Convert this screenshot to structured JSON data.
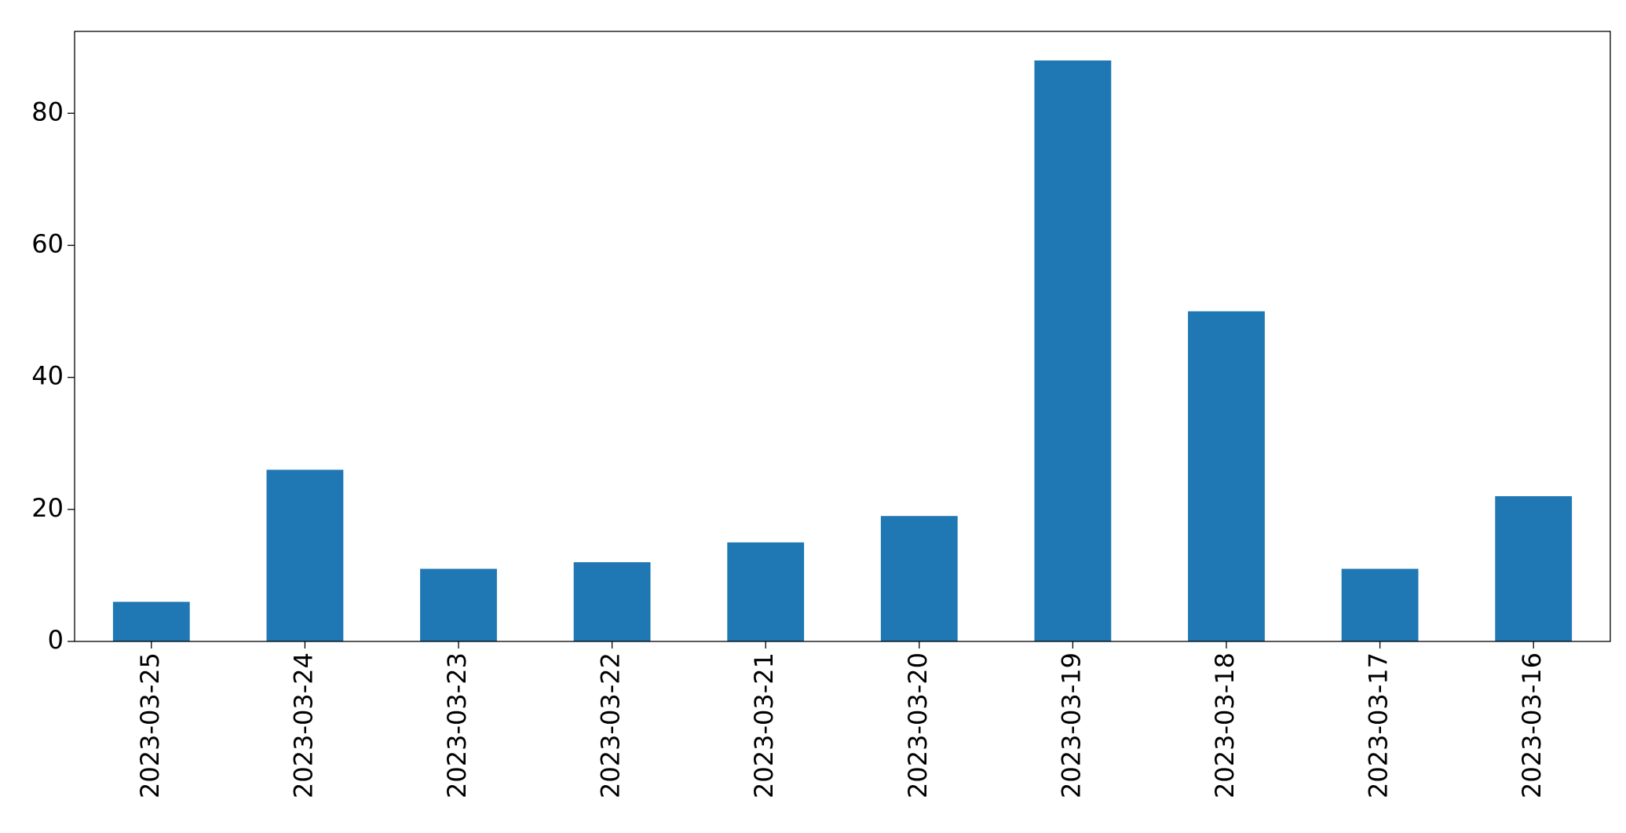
{
  "chart_data": {
    "type": "bar",
    "categories": [
      "2023-03-25",
      "2023-03-24",
      "2023-03-23",
      "2023-03-22",
      "2023-03-21",
      "2023-03-20",
      "2023-03-19",
      "2023-03-18",
      "2023-03-17",
      "2023-03-16"
    ],
    "values": [
      6,
      26,
      11,
      12,
      15,
      19,
      88,
      50,
      11,
      22
    ],
    "color": "#1f77b4",
    "ylim": [
      0,
      92.4
    ],
    "yticks": [
      0,
      20,
      40,
      60,
      80
    ],
    "grid": false
  }
}
